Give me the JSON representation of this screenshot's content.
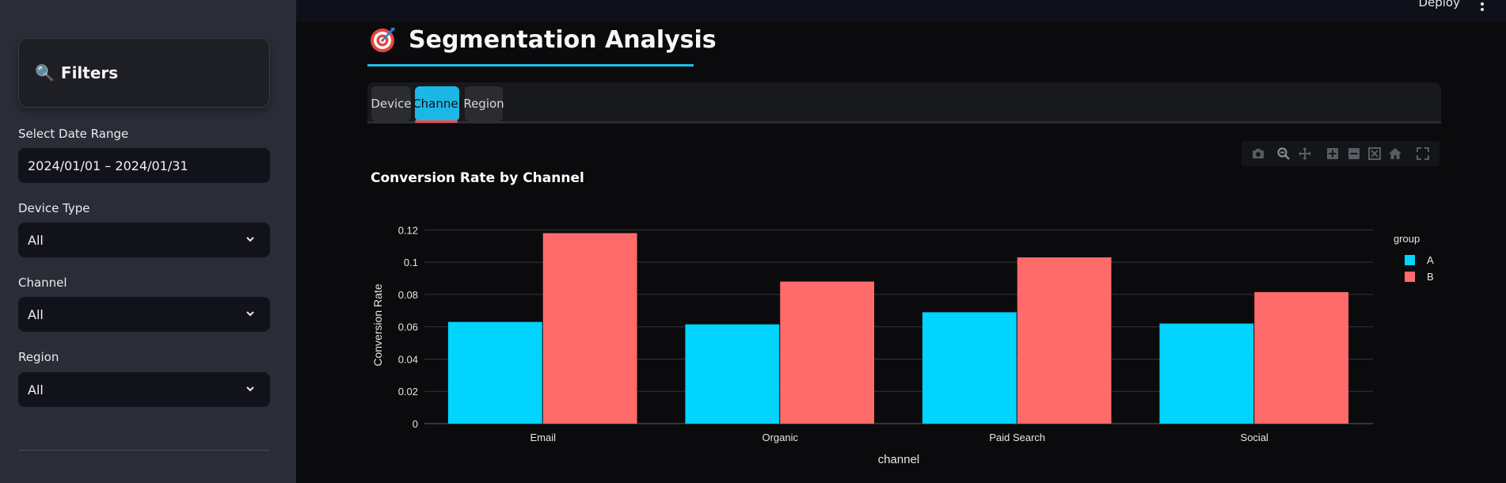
{
  "sidebar": {
    "filters_title": "Filters",
    "date_label": "Select Date Range",
    "date_value": "2024/01/01 – 2024/01/31",
    "device_label": "Device Type",
    "device_value": "All",
    "channel_label": "Channel",
    "channel_value": "All",
    "region_label": "Region",
    "region_value": "All"
  },
  "header": {
    "deploy_label": "Deploy",
    "page_title": "Segmentation Analysis"
  },
  "tabs": [
    {
      "label": "Device",
      "active": false
    },
    {
      "label": "Channel",
      "active": true
    },
    {
      "label": "Region",
      "active": false
    }
  ],
  "colors": {
    "accent": "#1bb8e6",
    "series_a": "#00d4ff",
    "series_b": "#ff6b6b",
    "tab_indicator": "#ff4b4b"
  },
  "chart_data": {
    "type": "bar",
    "title": "Conversion Rate by Channel",
    "xlabel": "channel",
    "ylabel": "Conversion Rate",
    "categories": [
      "Email",
      "Organic",
      "Paid Search",
      "Social"
    ],
    "series": [
      {
        "name": "A",
        "values": [
          0.063,
          0.0615,
          0.069,
          0.062
        ]
      },
      {
        "name": "B",
        "values": [
          0.118,
          0.088,
          0.103,
          0.0815
        ]
      }
    ],
    "ylim": [
      0,
      0.13
    ],
    "yticks": [
      0,
      0.02,
      0.04,
      0.06,
      0.08,
      0.1,
      0.12
    ],
    "ytick_labels": [
      "0",
      "0.02",
      "0.04",
      "0.06",
      "0.08",
      "0.1",
      "0.12"
    ],
    "legend_title": "group",
    "legend_position": "top-right",
    "grid": true
  }
}
